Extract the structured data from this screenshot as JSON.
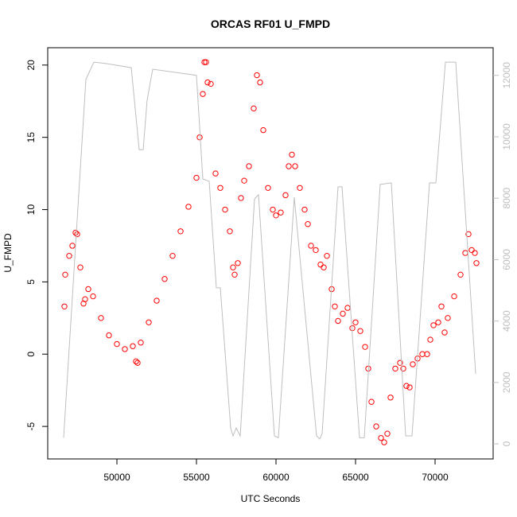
{
  "chart_data": {
    "type": "scatter",
    "title": "ORCAS RF01 U_FMPD",
    "x_label": "UTC Seconds",
    "y_label": "U_FMPD",
    "xlim": [
      45650,
      73650
    ],
    "ylim": [
      -7.25,
      21.2
    ],
    "y2lim": [
      -490,
      12900
    ],
    "xticks": [
      50000,
      55000,
      60000,
      65000,
      70000
    ],
    "yticks": [
      -5,
      0,
      5,
      10,
      15,
      20
    ],
    "y2ticks": [
      0,
      2000,
      4000,
      6000,
      8000,
      10000,
      12000
    ],
    "series": [
      {
        "type": "scatter",
        "color": "#ff0000",
        "x": [
          46700,
          46750,
          47000,
          47200,
          47400,
          47500,
          47700,
          47900,
          48000,
          48200,
          48500,
          49000,
          49500,
          50000,
          50500,
          51000,
          51200,
          51300,
          51500,
          52000,
          52500,
          53000,
          53500,
          54000,
          54500,
          55000,
          55200,
          55400,
          55500,
          55600,
          55700,
          55900,
          56200,
          56500,
          56800,
          57100,
          57300,
          57400,
          57600,
          57800,
          58000,
          58300,
          58600,
          58800,
          59000,
          59200,
          59500,
          59800,
          60000,
          60300,
          60600,
          60800,
          61000,
          61200,
          61500,
          61800,
          62000,
          62200,
          62500,
          62800,
          63000,
          63200,
          63500,
          63700,
          63900,
          64200,
          64500,
          64800,
          65000,
          65300,
          65600,
          65800,
          66000,
          66300,
          66600,
          66800,
          67000,
          67200,
          67500,
          67800,
          68000,
          68200,
          68400,
          68600,
          68900,
          69200,
          69500,
          69700,
          69900,
          70200,
          70400,
          70600,
          70800,
          71200,
          71600,
          71900,
          72100,
          72300,
          72500,
          72600
        ],
        "values": [
          3.3,
          5.5,
          6.8,
          7.5,
          8.4,
          8.3,
          6,
          3.5,
          3.8,
          4.5,
          4,
          2.5,
          1.3,
          0.7,
          0.35,
          0.55,
          -0.5,
          -0.6,
          0.8,
          2.2,
          3.7,
          5.2,
          6.8,
          8.5,
          10.2,
          12.2,
          15,
          18,
          20.2,
          20.2,
          18.8,
          18.7,
          12.5,
          11.5,
          10,
          8.5,
          6,
          5.5,
          6.3,
          10.8,
          12,
          13,
          17,
          19.3,
          18.8,
          15.5,
          11.5,
          10,
          9.6,
          9.8,
          11,
          13,
          13.8,
          13,
          11.5,
          10,
          9,
          7.5,
          7.2,
          6.2,
          6,
          6.8,
          4.5,
          3.3,
          2.3,
          2.8,
          3.2,
          1.8,
          2.2,
          1.6,
          0.5,
          -1,
          -3.3,
          -5,
          -5.8,
          -6.1,
          -5.5,
          -3,
          -1,
          -0.6,
          -1,
          -2.2,
          -2.3,
          -0.7,
          -0.3,
          0,
          0,
          1,
          2,
          2.2,
          3.3,
          1.5,
          2.5,
          4,
          5.5,
          7,
          8.3,
          7.2,
          7,
          6.3
        ]
      },
      {
        "type": "line",
        "axis": "y2",
        "color": "#bebebe",
        "x": [
          46650,
          48050,
          48550,
          49400,
          50900,
          51400,
          51650,
          51900,
          52250,
          55000,
          55400,
          55800,
          56250,
          56500,
          57150,
          57300,
          57500,
          57750,
          58650,
          58900,
          59900,
          60150,
          61150,
          62550,
          62750,
          62900,
          63900,
          64150,
          65250,
          65550,
          66550,
          67250,
          68150,
          68550,
          69650,
          70050,
          70650,
          71300,
          72550
        ],
        "values": [
          200,
          11870,
          12430,
          12380,
          12250,
          9580,
          9580,
          11200,
          12200,
          12000,
          8630,
          8550,
          5080,
          5080,
          520,
          260,
          520,
          260,
          7980,
          8110,
          260,
          200,
          8030,
          260,
          160,
          340,
          8370,
          8370,
          200,
          200,
          8450,
          8500,
          260,
          260,
          8500,
          8500,
          12430,
          12430,
          2280
        ]
      }
    ]
  }
}
